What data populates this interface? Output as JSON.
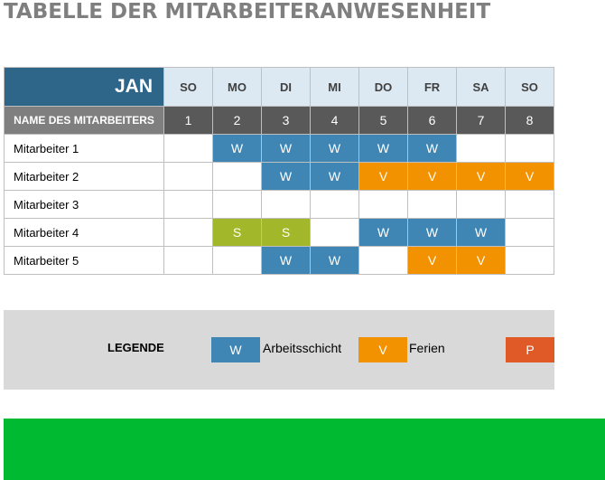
{
  "title": "TABELLE DER MITARBEITERANWESENHEIT",
  "month": "JAN",
  "name_header": "NAME DES MITARBEITERS",
  "days": [
    {
      "name": "SO",
      "num": "1"
    },
    {
      "name": "MO",
      "num": "2"
    },
    {
      "name": "DI",
      "num": "3"
    },
    {
      "name": "MI",
      "num": "4"
    },
    {
      "name": "DO",
      "num": "5"
    },
    {
      "name": "FR",
      "num": "6"
    },
    {
      "name": "SA",
      "num": "7"
    },
    {
      "name": "SO",
      "num": "8"
    }
  ],
  "employees": [
    {
      "name": "Mitarbeiter 1",
      "cells": [
        "",
        "W",
        "W",
        "W",
        "W",
        "W",
        "",
        ""
      ]
    },
    {
      "name": "Mitarbeiter 2",
      "cells": [
        "",
        "",
        "W",
        "W",
        "V",
        "V",
        "V",
        "V"
      ]
    },
    {
      "name": "Mitarbeiter 3",
      "cells": [
        "",
        "",
        "",
        "",
        "",
        "",
        "",
        ""
      ]
    },
    {
      "name": "Mitarbeiter 4",
      "cells": [
        "",
        "S",
        "S",
        "",
        "W",
        "W",
        "W",
        ""
      ]
    },
    {
      "name": "Mitarbeiter 5",
      "cells": [
        "",
        "",
        "W",
        "W",
        "",
        "V",
        "V",
        ""
      ]
    }
  ],
  "legend": {
    "title": "LEGENDE",
    "items": [
      {
        "key": "W",
        "label": "Arbeitsschicht"
      },
      {
        "key": "V",
        "label": "Ferien"
      },
      {
        "key": "P",
        "label": ""
      }
    ]
  },
  "colors": {
    "W": "#3f86b4",
    "V": "#f39200",
    "S": "#a2b72a",
    "P": "#e05a28",
    "header": "#2e6689",
    "green_bar": "#00bb31"
  }
}
